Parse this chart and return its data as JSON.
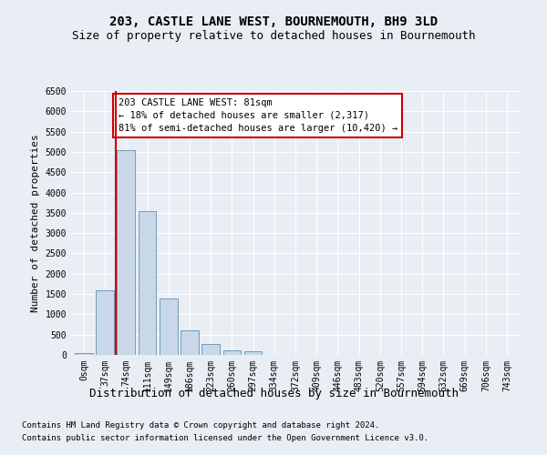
{
  "title": "203, CASTLE LANE WEST, BOURNEMOUTH, BH9 3LD",
  "subtitle": "Size of property relative to detached houses in Bournemouth",
  "xlabel": "Distribution of detached houses by size in Bournemouth",
  "ylabel": "Number of detached properties",
  "footnote1": "Contains HM Land Registry data © Crown copyright and database right 2024.",
  "footnote2": "Contains public sector information licensed under the Open Government Licence v3.0.",
  "categories": [
    "0sqm",
    "37sqm",
    "74sqm",
    "111sqm",
    "149sqm",
    "186sqm",
    "223sqm",
    "260sqm",
    "297sqm",
    "334sqm",
    "372sqm",
    "409sqm",
    "446sqm",
    "483sqm",
    "520sqm",
    "557sqm",
    "594sqm",
    "632sqm",
    "669sqm",
    "706sqm",
    "743sqm"
  ],
  "bar_values": [
    50,
    1600,
    5050,
    3550,
    1400,
    600,
    270,
    120,
    90,
    0,
    0,
    0,
    0,
    0,
    0,
    0,
    0,
    0,
    0,
    0,
    0
  ],
  "bar_color": "#c8d8e8",
  "bar_edge_color": "#6090b0",
  "ylim": [
    0,
    6500
  ],
  "yticks": [
    0,
    500,
    1000,
    1500,
    2000,
    2500,
    3000,
    3500,
    4000,
    4500,
    5000,
    5500,
    6000,
    6500
  ],
  "vline_x": 1.5,
  "vline_color": "#cc0000",
  "annotation_text": "203 CASTLE LANE WEST: 81sqm\n← 18% of detached houses are smaller (2,317)\n81% of semi-detached houses are larger (10,420) →",
  "annotation_box_color": "#ffffff",
  "annotation_box_edge_color": "#cc0000",
  "background_color": "#e8eef4",
  "plot_background_color": "#e8eef4",
  "grid_color": "#ffffff",
  "title_fontsize": 10,
  "subtitle_fontsize": 9,
  "xlabel_fontsize": 9,
  "ylabel_fontsize": 8,
  "tick_fontsize": 7,
  "annotation_fontsize": 7.5,
  "footnote_fontsize": 6.5
}
